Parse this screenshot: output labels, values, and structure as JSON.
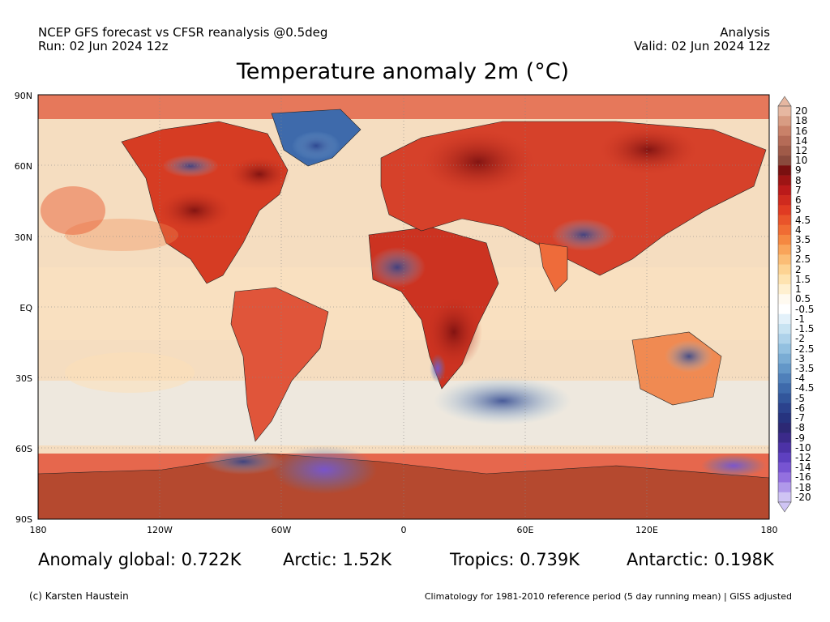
{
  "header": {
    "source": "NCEP GFS forecast vs CFSR reanalysis @0.5deg",
    "run": "Run: 02 Jun 2024 12z",
    "analysis": "Analysis",
    "valid": "Valid: 02 Jun 2024 12z"
  },
  "map": {
    "title": "Temperature anomaly 2m (°C)",
    "lat_labels": [
      "90N",
      "60N",
      "30N",
      "EQ",
      "30S",
      "60S",
      "90S"
    ],
    "lon_labels": [
      "180",
      "120W",
      "60W",
      "0",
      "60E",
      "120E",
      "180"
    ],
    "ocean_color": "#f3dcc0",
    "land_color": "#cc3321"
  },
  "colorbar": {
    "labels": [
      "20",
      "18",
      "16",
      "14",
      "12",
      "10",
      "9",
      "8",
      "7",
      "6",
      "5",
      "4.5",
      "4",
      "3.5",
      "3",
      "2.5",
      "2",
      "1.5",
      "1",
      "0.5",
      "-0.5",
      "-1",
      "-1.5",
      "-2",
      "-2.5",
      "-3",
      "-3.5",
      "-4",
      "-4.5",
      "-5",
      "-6",
      "-7",
      "-8",
      "-9",
      "-10",
      "-12",
      "-14",
      "-16",
      "-18",
      "-20"
    ],
    "colors": [
      "#e6b7a1",
      "#d89c83",
      "#c98169",
      "#b56b57",
      "#a05a48",
      "#8a4a3d",
      "#7a1010",
      "#9e1414",
      "#bb1a1a",
      "#cf2a1e",
      "#e03b22",
      "#e9542a",
      "#f06c33",
      "#f58841",
      "#f9a45a",
      "#fbbd76",
      "#fdd393",
      "#fee3b0",
      "#fff0d0",
      "#fffaf0",
      "#ffffff",
      "#e3f1fa",
      "#c8e3f2",
      "#aed2ea",
      "#93c0e0",
      "#7aacd4",
      "#6397c8",
      "#4f80ba",
      "#3e6aab",
      "#32569b",
      "#2b428d",
      "#26337f",
      "#2c2874",
      "#3b2a8a",
      "#4c32a6",
      "#5e40c0",
      "#7754d2",
      "#9370df",
      "#b099ea",
      "#cfc4f4"
    ]
  },
  "stats": {
    "global": "Anomaly global: 0.722K",
    "arctic": "Arctic: 1.52K",
    "tropics": "Tropics: 0.739K",
    "antarctic": "Antarctic: 0.198K"
  },
  "footer": {
    "credit": "(c) Karsten Haustein",
    "climatology": "Climatology for 1981-2010 reference period (5 day running mean) | GISS adjusted"
  }
}
